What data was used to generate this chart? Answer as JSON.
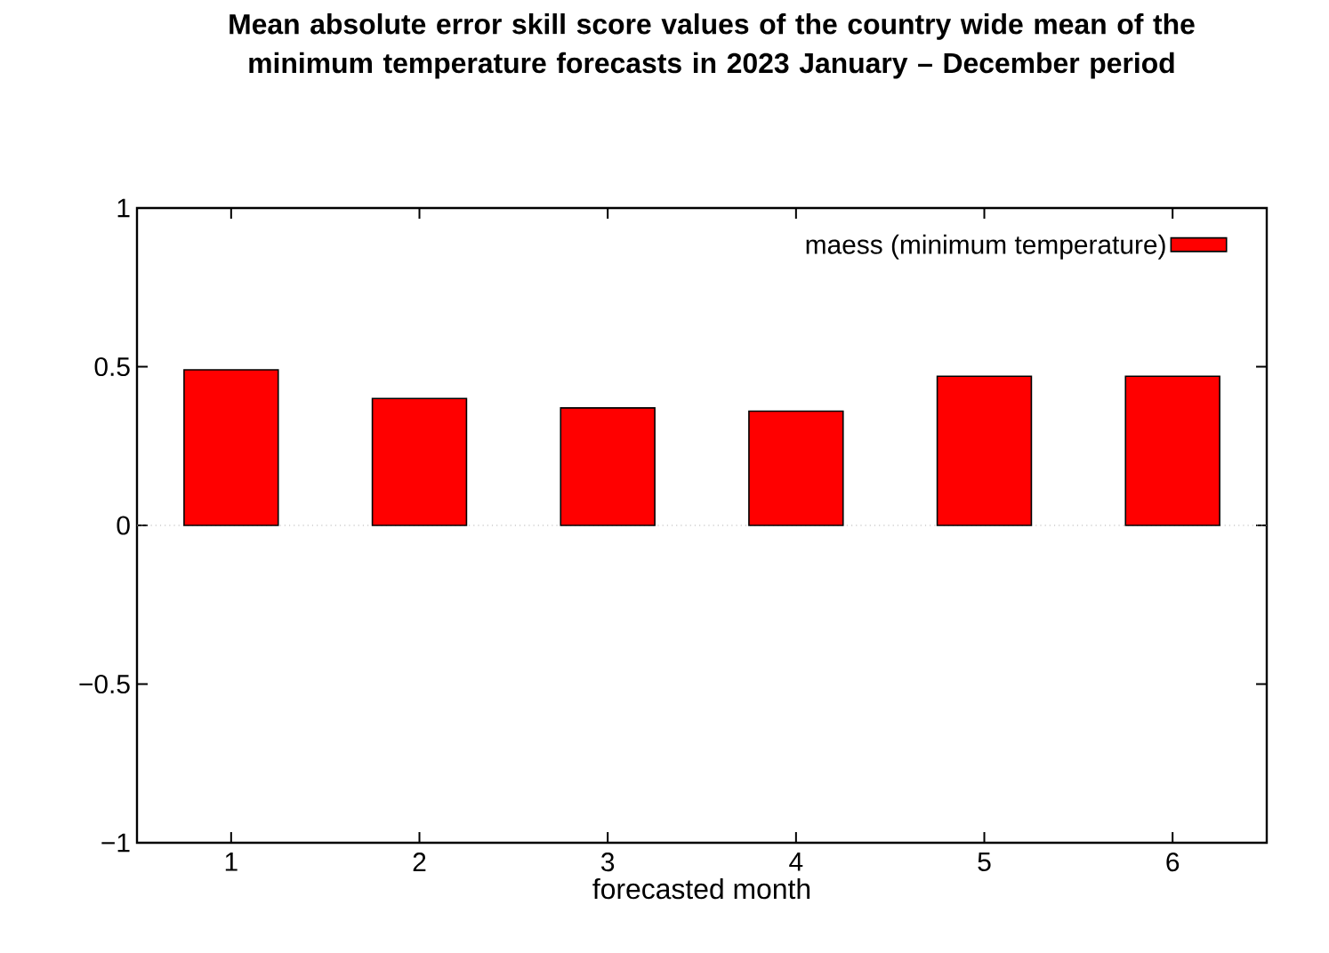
{
  "chart_data": {
    "type": "bar",
    "title": "Mean absolute error skill score values of the country wide mean of the minimum temperature forecasts in 2023 January – December period",
    "xlabel": "forecasted month",
    "categories": [
      "1",
      "2",
      "3",
      "4",
      "5",
      "6"
    ],
    "series": [
      {
        "name": "maess (minimum temperature)",
        "color": "#ff0000",
        "values": [
          0.49,
          0.4,
          0.37,
          0.36,
          0.47,
          0.47
        ]
      }
    ],
    "ylim": [
      -1,
      1
    ],
    "yticks": [
      {
        "value": -1,
        "label": "−1"
      },
      {
        "value": -0.5,
        "label": "−0.5"
      },
      0,
      0.5,
      1
    ],
    "ref_lines": [
      {
        "axis": "y",
        "value": 0,
        "color": "#b4b4b4",
        "line_style": "dotted"
      }
    ],
    "legend": "top right"
  }
}
